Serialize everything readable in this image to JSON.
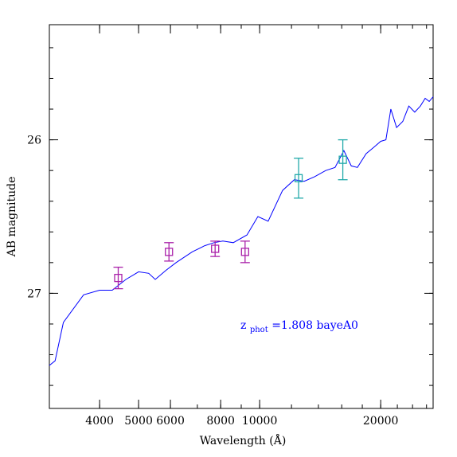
{
  "chart_data": {
    "type": "line",
    "xlabel": "Wavelength (Å)",
    "ylabel": "AB magnitude",
    "xscale": "log",
    "yaxis_inverted": true,
    "xlim": [
      3000,
      27000
    ],
    "ylim": [
      27.75,
      25.25
    ],
    "x_tick_labels": [
      {
        "value": 4000,
        "label": "4000"
      },
      {
        "value": 5000,
        "label": "5000"
      },
      {
        "value": 6000,
        "label": "6000"
      },
      {
        "value": 8000,
        "label": "8000"
      },
      {
        "value": 10000,
        "label": "10000"
      },
      {
        "value": 20000,
        "label": "20000"
      }
    ],
    "y_tick_labels": [
      {
        "value": 26,
        "label": "26"
      },
      {
        "value": 27,
        "label": "27"
      }
    ],
    "grid": false,
    "annotation": {
      "text_main": "z",
      "text_sub": "phot",
      "text_rest": "=1.808 bayeA0",
      "color": "#0000ff"
    },
    "series": [
      {
        "kind": "model-sed",
        "color": "#0000ff",
        "points": [
          [
            3000,
            27.47
          ],
          [
            3100,
            27.44
          ],
          [
            3250,
            27.19
          ],
          [
            3650,
            27.01
          ],
          [
            4000,
            26.98
          ],
          [
            4300,
            26.98
          ],
          [
            4650,
            26.91
          ],
          [
            5000,
            26.86
          ],
          [
            5300,
            26.87
          ],
          [
            5500,
            26.91
          ],
          [
            5850,
            26.85
          ],
          [
            6200,
            26.8
          ],
          [
            6800,
            26.73
          ],
          [
            7300,
            26.69
          ],
          [
            7700,
            26.67
          ],
          [
            8100,
            26.66
          ],
          [
            8600,
            26.67
          ],
          [
            9300,
            26.62
          ],
          [
            9900,
            26.5
          ],
          [
            10500,
            26.53
          ],
          [
            11400,
            26.33
          ],
          [
            12200,
            26.26
          ],
          [
            12900,
            26.27
          ],
          [
            13700,
            26.24
          ],
          [
            14600,
            26.2
          ],
          [
            15400,
            26.18
          ],
          [
            16200,
            26.07
          ],
          [
            16900,
            26.17
          ],
          [
            17500,
            26.18
          ],
          [
            18400,
            26.09
          ],
          [
            19200,
            26.05
          ],
          [
            20000,
            26.01
          ],
          [
            20600,
            26.0
          ],
          [
            21200,
            25.8
          ],
          [
            21900,
            25.92
          ],
          [
            22700,
            25.88
          ],
          [
            23500,
            25.78
          ],
          [
            24300,
            25.82
          ],
          [
            25100,
            25.78
          ],
          [
            25800,
            25.73
          ],
          [
            26400,
            25.75
          ],
          [
            27000,
            25.72
          ]
        ]
      },
      {
        "kind": "photometry",
        "color": "#aa22aa",
        "points": [
          {
            "x": 4450,
            "y": 26.9,
            "yerr": 0.07
          },
          {
            "x": 5950,
            "y": 26.73,
            "yerr": 0.06
          },
          {
            "x": 7750,
            "y": 26.71,
            "yerr": 0.05
          },
          {
            "x": 9200,
            "y": 26.73,
            "yerr": 0.07
          }
        ]
      },
      {
        "kind": "photometry",
        "color": "#22aaaa",
        "points": [
          {
            "x": 12500,
            "y": 26.25,
            "yerr": 0.13
          },
          {
            "x": 16100,
            "y": 26.13,
            "yerr": 0.13
          }
        ]
      }
    ]
  }
}
